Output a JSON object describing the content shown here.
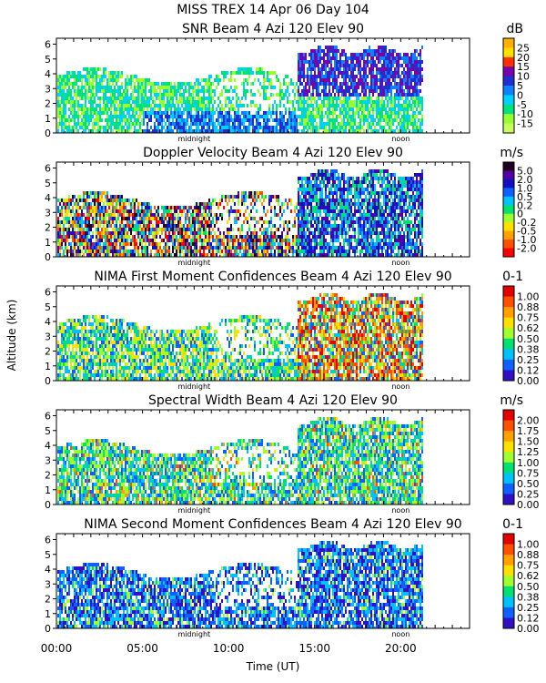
{
  "header": {
    "title_line1": "MISS TREX    14 Apr 06 Day 104"
  },
  "y_axis_label": "Altitude (km)",
  "x_axis_label": "Time (UT)",
  "x_ticks": [
    {
      "hour": 0,
      "label": "00:00"
    },
    {
      "hour": 5,
      "label": "05:00"
    },
    {
      "hour": 10,
      "label": "10:00"
    },
    {
      "hour": 15,
      "label": "15:00"
    },
    {
      "hour": 20,
      "label": "20:00"
    }
  ],
  "markers": [
    {
      "hour": 8.0,
      "label": "midnight"
    },
    {
      "hour": 20.0,
      "label": "noon"
    }
  ],
  "chart_data": [
    {
      "type": "heatmap",
      "title": "SNR Beam 4 Azi 120 Elev 90",
      "unit": "dB",
      "xlabel": "Time (UT)",
      "ylabel": "Altitude (km)",
      "xlim": [
        0,
        24
      ],
      "ylim": [
        0,
        6.4
      ],
      "y_ticks": [
        0,
        1,
        2,
        3,
        4,
        5,
        6
      ],
      "colorbar": {
        "labels": [
          "25",
          "20",
          "15",
          "10",
          "5",
          "0",
          "-5",
          "-10",
          "-15"
        ],
        "colors": [
          "#ffb000",
          "#ffe000",
          "#ff3000",
          "#7800a8",
          "#2030d0",
          "#1080ff",
          "#00d0ff",
          "#00e080",
          "#98ff30",
          "#c8ff60"
        ]
      }
    },
    {
      "type": "heatmap",
      "title": "Doppler Velocity Beam 4 Azi 120 Elev 90",
      "unit": "m/s",
      "xlabel": "Time (UT)",
      "ylabel": "Altitude (km)",
      "xlim": [
        0,
        24
      ],
      "ylim": [
        0,
        6.4
      ],
      "y_ticks": [
        0,
        1,
        2,
        3,
        4,
        5,
        6
      ],
      "colorbar": {
        "labels": [
          "5.0",
          "2.0",
          "1.0",
          "0.5",
          "0.2",
          "0",
          "-0.2",
          "-0.5",
          "-1.0",
          "-2.0"
        ],
        "colors": [
          "#200020",
          "#5000a0",
          "#1010c0",
          "#1060ff",
          "#00c0ff",
          "#00e070",
          "#a0ff30",
          "#ffe000",
          "#ffa000",
          "#ff5000",
          "#ff0000"
        ]
      }
    },
    {
      "type": "heatmap",
      "title": "NIMA First Moment Confidences Beam 4 Azi 120 Elev 90",
      "unit": "0-1",
      "xlabel": "Time (UT)",
      "ylabel": "Altitude (km)",
      "xlim": [
        0,
        24
      ],
      "ylim": [
        0,
        6.4
      ],
      "y_ticks": [
        0,
        1,
        2,
        3,
        4,
        5,
        6
      ],
      "colorbar": {
        "labels": [
          "1.00",
          "0.88",
          "0.75",
          "0.62",
          "0.50",
          "0.38",
          "0.25",
          "0.12",
          "0.00"
        ],
        "colors": [
          "#e00000",
          "#ff5000",
          "#ffa000",
          "#ffe000",
          "#a0ff30",
          "#00e070",
          "#00c0ff",
          "#1060ff",
          "#3010c0"
        ]
      }
    },
    {
      "type": "heatmap",
      "title": "Spectral Width Beam 4 Azi 120 Elev 90",
      "unit": "m/s",
      "xlabel": "Time (UT)",
      "ylabel": "Altitude (km)",
      "xlim": [
        0,
        24
      ],
      "ylim": [
        0,
        6.4
      ],
      "y_ticks": [
        0,
        1,
        2,
        3,
        4,
        5,
        6
      ],
      "colorbar": {
        "labels": [
          "2.00",
          "1.75",
          "1.50",
          "1.25",
          "1.00",
          "0.75",
          "0.50",
          "0.25",
          "0.00"
        ],
        "colors": [
          "#e00000",
          "#ff5000",
          "#ffa000",
          "#ffe000",
          "#a0ff30",
          "#00e070",
          "#00c0ff",
          "#1060ff",
          "#3010c0"
        ]
      }
    },
    {
      "type": "heatmap",
      "title": "NIMA Second Moment Confidences Beam 4 Azi 120 Elev 90",
      "unit": "0-1",
      "xlabel": "Time (UT)",
      "ylabel": "Altitude (km)",
      "xlim": [
        0,
        24
      ],
      "ylim": [
        0,
        6.4
      ],
      "y_ticks": [
        0,
        1,
        2,
        3,
        4,
        5,
        6
      ],
      "colorbar": {
        "labels": [
          "1.00",
          "0.88",
          "0.75",
          "0.62",
          "0.50",
          "0.38",
          "0.25",
          "0.12",
          "0.00"
        ],
        "colors": [
          "#e00000",
          "#ff5000",
          "#ffa000",
          "#ffe000",
          "#a0ff30",
          "#00e070",
          "#00c0ff",
          "#1060ff",
          "#3010c0"
        ]
      }
    }
  ]
}
